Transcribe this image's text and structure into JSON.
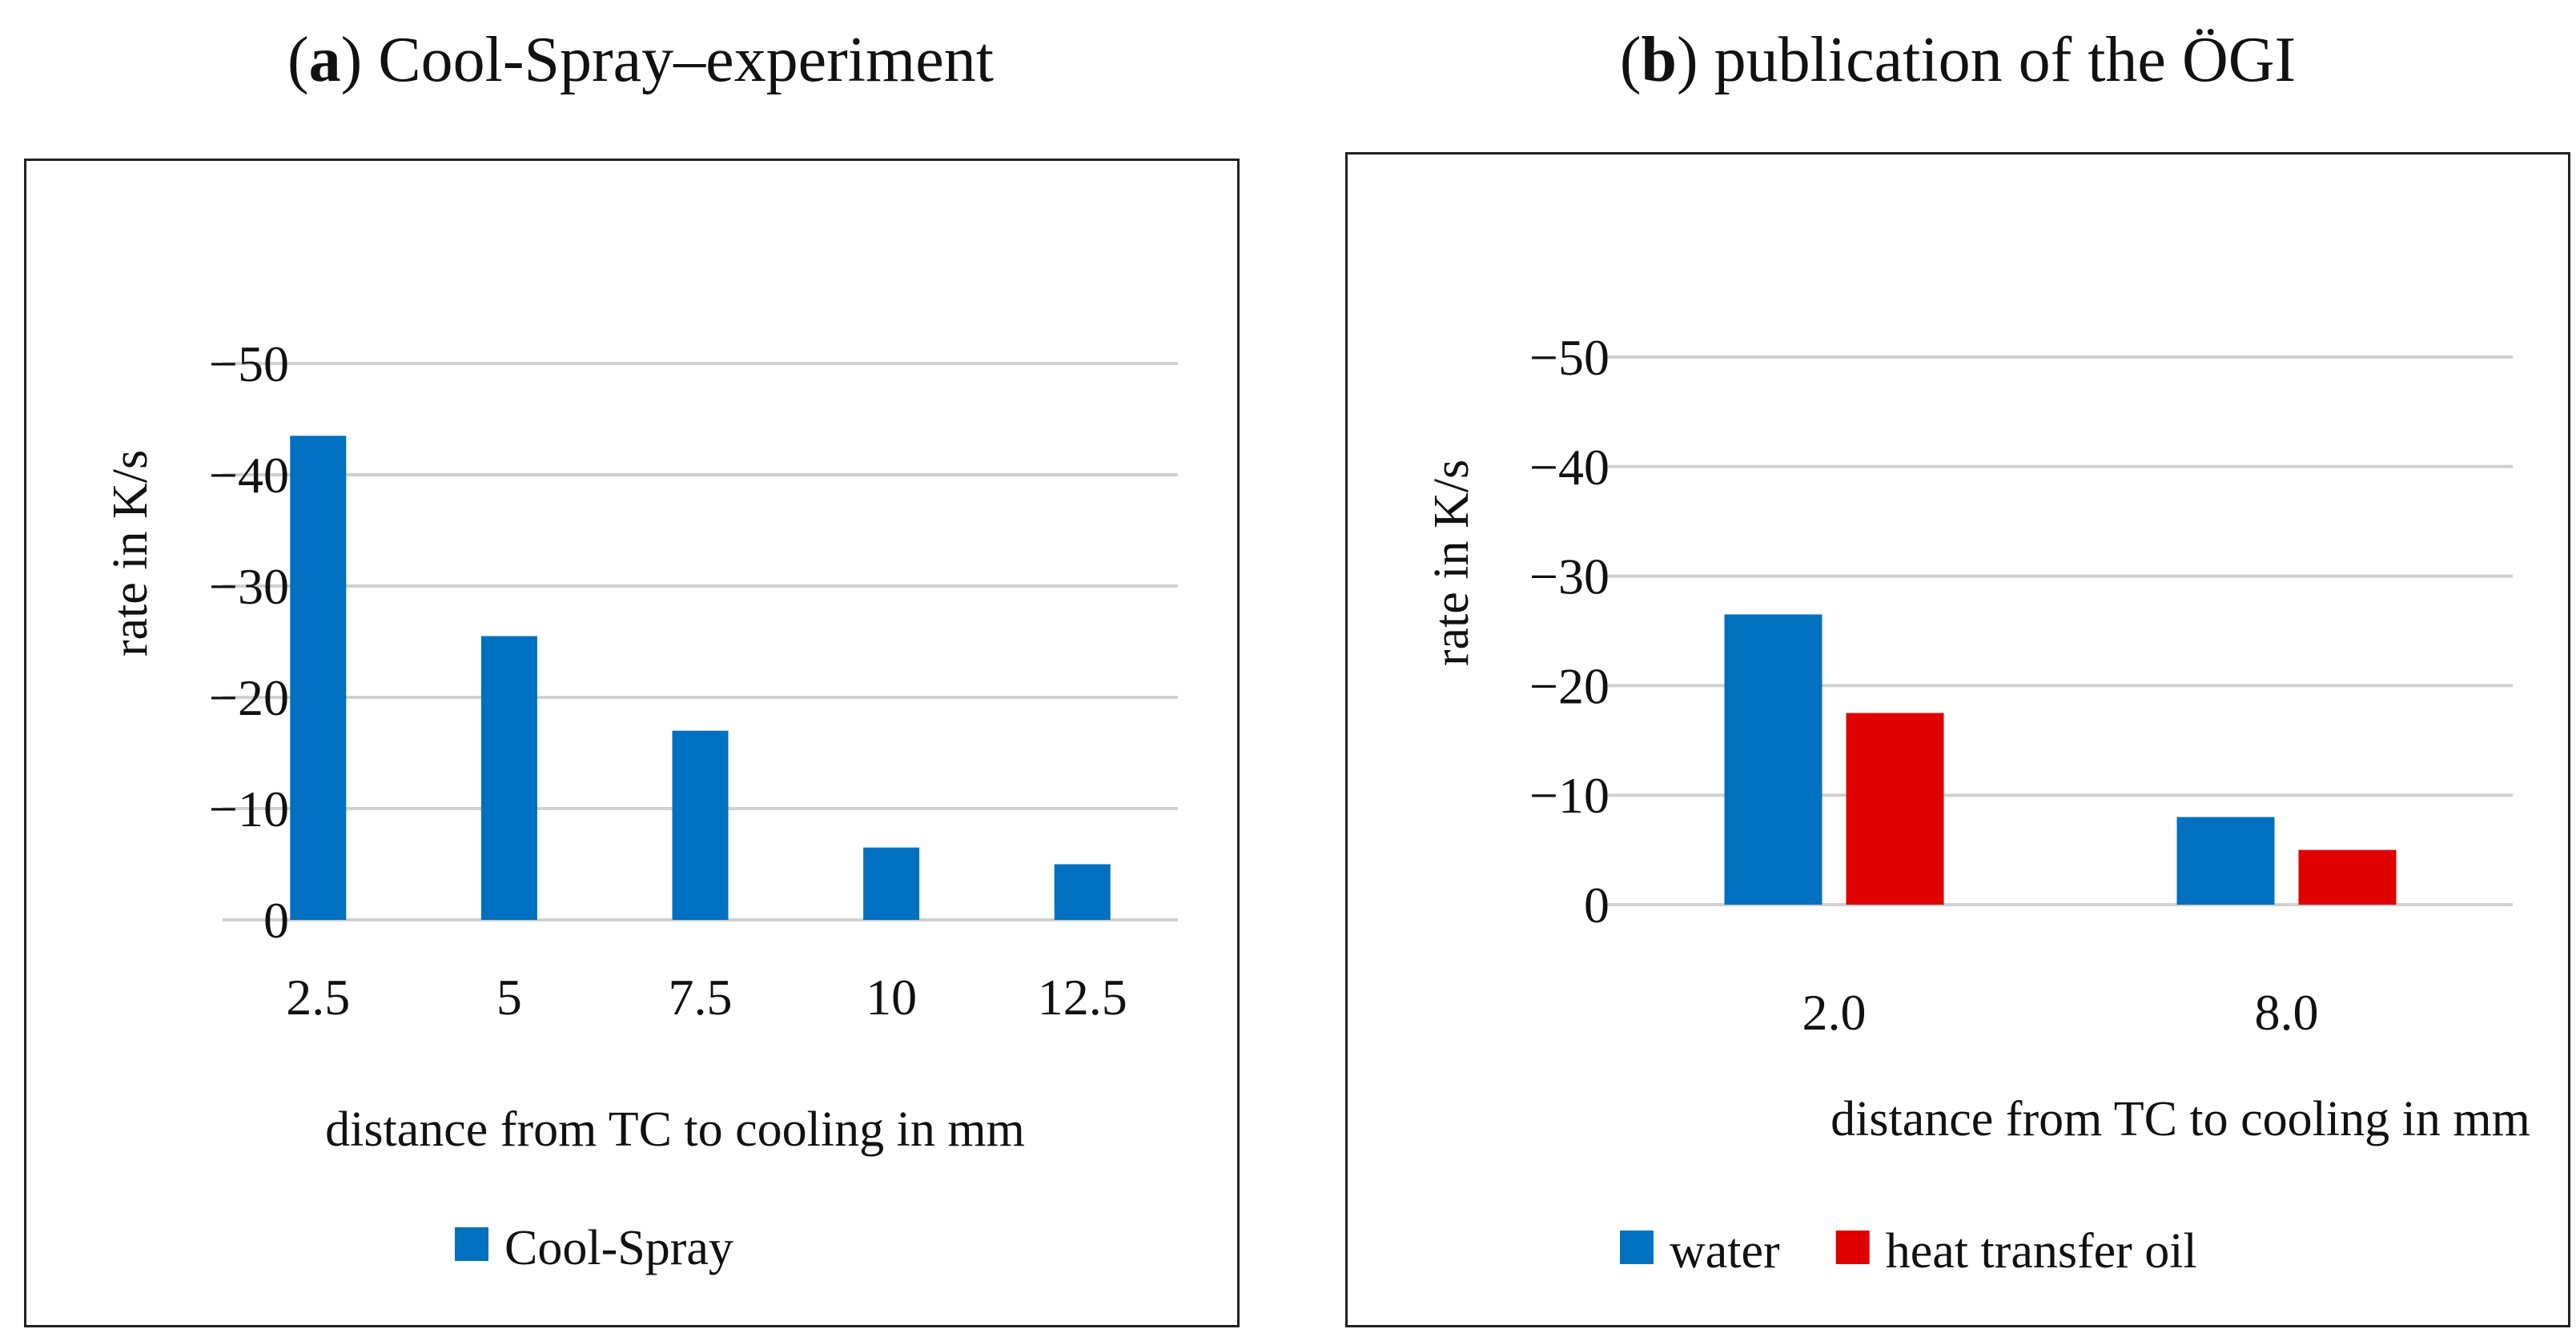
{
  "panels": [
    {
      "label": "a",
      "title": "Cool-Spray–experiment"
    },
    {
      "label": "b",
      "title": "publication of the ÖGI"
    }
  ],
  "chart_data": [
    {
      "type": "bar",
      "title": "(a) Cool-Spray–experiment",
      "categories": [
        "2.5",
        "5",
        "7.5",
        "10",
        "12.5"
      ],
      "series": [
        {
          "name": "Cool-Spray",
          "color": "#0070c0",
          "values": [
            -43.5,
            -25.5,
            -17.0,
            -6.5,
            -5.0
          ]
        }
      ],
      "xlabel": "distance from TC to cooling in mm",
      "ylabel": "rate in K/s",
      "yticks": [
        "0",
        "−10",
        "−20",
        "−30",
        "−40",
        "−50"
      ],
      "ylim": [
        0,
        -50
      ],
      "grid": true,
      "legend": "bottom-left"
    },
    {
      "type": "bar",
      "title": "(b) publication of the ÖGI",
      "categories": [
        "2.0",
        "8.0"
      ],
      "series": [
        {
          "name": "water",
          "color": "#0070c0",
          "values": [
            -26.5,
            -8.0
          ]
        },
        {
          "name": "heat transfer oil",
          "color": "#e00000",
          "values": [
            -17.5,
            -5.0
          ]
        }
      ],
      "xlabel": "distance from TC to cooling in mm",
      "ylabel": "rate in K/s",
      "yticks": [
        "0",
        "−10",
        "−20",
        "−30",
        "−40",
        "−50"
      ],
      "ylim": [
        0,
        -50
      ],
      "grid": true,
      "legend": "bottom-left"
    }
  ]
}
